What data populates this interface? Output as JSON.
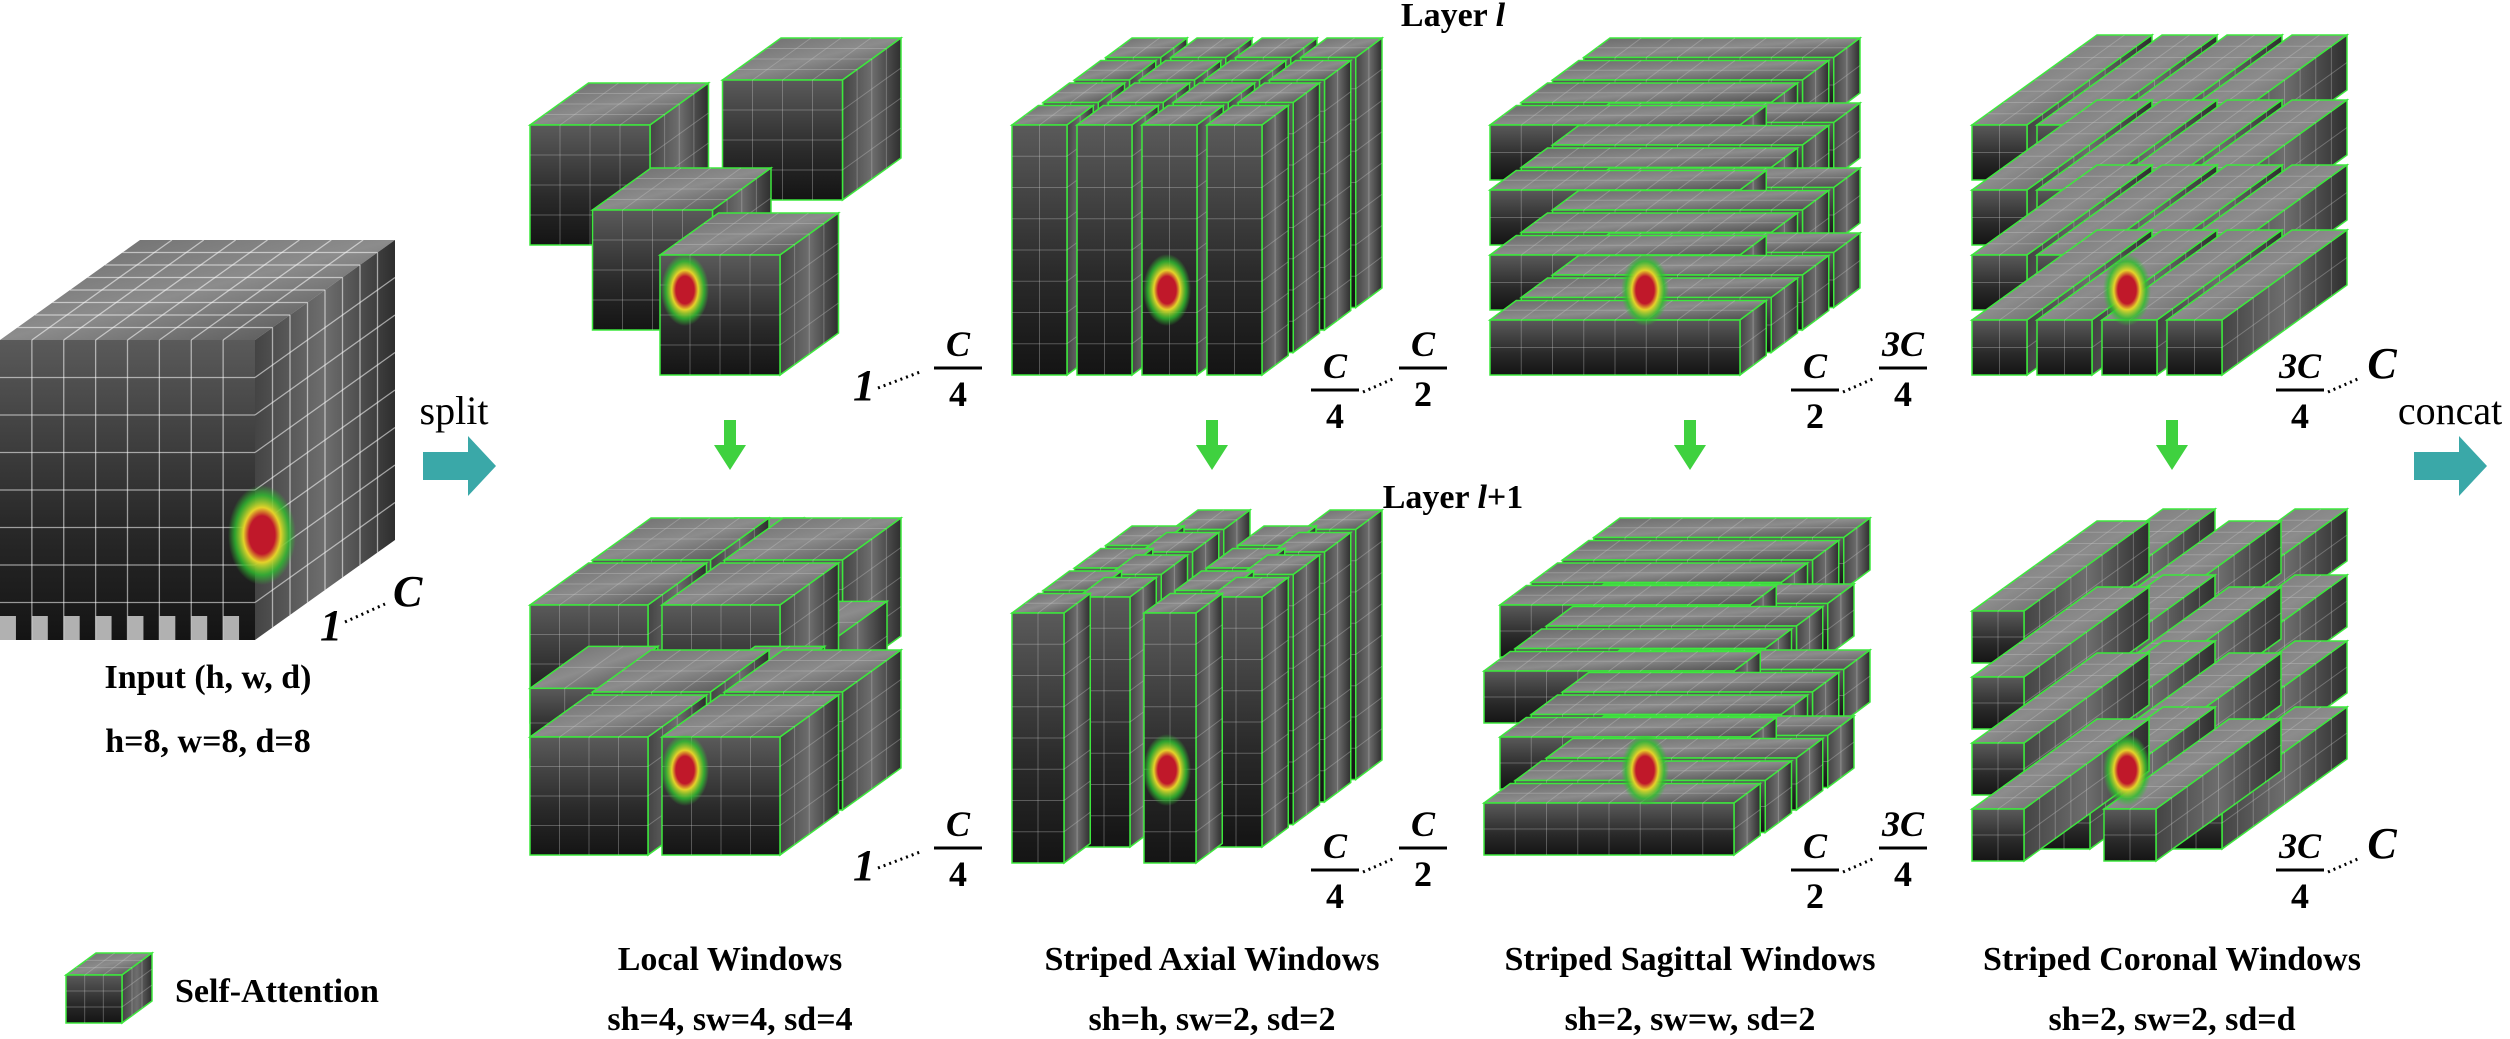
{
  "layer_top": {
    "prefix": "Layer ",
    "var": "l",
    "suffix": ""
  },
  "layer_bottom": {
    "prefix": "Layer ",
    "var": "l",
    "suffix": "+1"
  },
  "input": {
    "title": "Input (h, w, d)",
    "dims": "h=8, w=8, d=8",
    "range_start": "1",
    "range_end": "C"
  },
  "split_label": "split",
  "concat_label": "concat",
  "legend": {
    "label": "Self-Attention",
    "icon": "self-attention-cube-icon"
  },
  "columns": [
    {
      "title": "Local Windows",
      "params": "sh=4, sw=4, sd=4",
      "range_start": "1",
      "range_end_num": "C",
      "range_end_den": "4",
      "variant": "local"
    },
    {
      "title": "Striped Axial Windows",
      "params": "sh=h, sw=2, sd=2",
      "range_start_num": "C",
      "range_start_den": "4",
      "range_end_num": "C",
      "range_end_den": "2",
      "variant": "axial"
    },
    {
      "title": "Striped Sagittal Windows",
      "params": "sh=2, sw=w, sd=2",
      "range_start_num": "C",
      "range_start_den": "2",
      "range_end_num": "3C",
      "range_end_den": "4",
      "variant": "sagittal"
    },
    {
      "title": "Striped Coronal Windows",
      "params": "sh=2, sw=2, sd=d",
      "range_start_num": "3C",
      "range_start_den": "4",
      "range_end": "C",
      "variant": "coronal"
    }
  ],
  "colors": {
    "arrow_teal": "#3aa8a8",
    "arrow_green": "#3fd13f",
    "edge_green": "#3de83d",
    "cube_dark": "#1e1e1e",
    "cube_mid": "#3a3a3a",
    "cube_light": "#7a7a7a",
    "heat_red": "#c0182a",
    "heat_yellow": "#e5d22a",
    "heat_green": "#2fbf2f"
  }
}
